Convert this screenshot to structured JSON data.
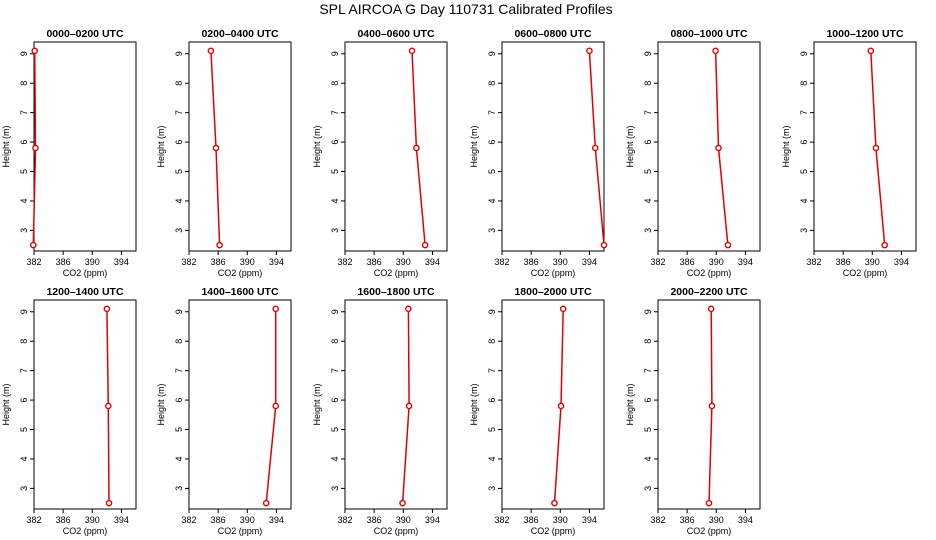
{
  "title": "SPL AIRCOA G  Day 110731  Calibrated Profiles",
  "colors": {
    "line": "#e00000",
    "axis": "#000000"
  },
  "chart_data": {
    "type": "line",
    "xlabel": "CO2 (ppm)",
    "ylabel": "Height (m)",
    "xlim": [
      382,
      396
    ],
    "ylim": [
      2.3,
      9.4
    ],
    "xticks": [
      382,
      386,
      390,
      394
    ],
    "yticks": [
      3,
      4,
      5,
      6,
      7,
      8,
      9
    ],
    "heights": [
      9.1,
      5.8,
      2.5
    ],
    "panels": [
      {
        "title": "0000–0200 UTC",
        "co2": [
          382.1,
          382.2,
          381.9
        ]
      },
      {
        "title": "0200–0400 UTC",
        "co2": [
          385.0,
          385.7,
          386.2
        ]
      },
      {
        "title": "0400–0600 UTC",
        "co2": [
          391.2,
          391.8,
          393.0
        ]
      },
      {
        "title": "0600–0800 UTC",
        "co2": [
          394.0,
          394.8,
          396.0
        ]
      },
      {
        "title": "0800–1000 UTC",
        "co2": [
          389.9,
          390.3,
          391.6
        ]
      },
      {
        "title": "1000–1200 UTC",
        "co2": [
          389.8,
          390.5,
          391.7
        ]
      },
      {
        "title": "1200–1400 UTC",
        "co2": [
          392.0,
          392.2,
          392.3
        ]
      },
      {
        "title": "1400–1600 UTC",
        "co2": [
          393.9,
          393.9,
          392.6
        ]
      },
      {
        "title": "1600–1800 UTC",
        "co2": [
          390.7,
          390.8,
          389.9
        ]
      },
      {
        "title": "1800–2000 UTC",
        "co2": [
          390.4,
          390.1,
          389.2
        ]
      },
      {
        "title": "2000–2200 UTC",
        "co2": [
          389.3,
          389.4,
          389.0
        ]
      }
    ]
  }
}
